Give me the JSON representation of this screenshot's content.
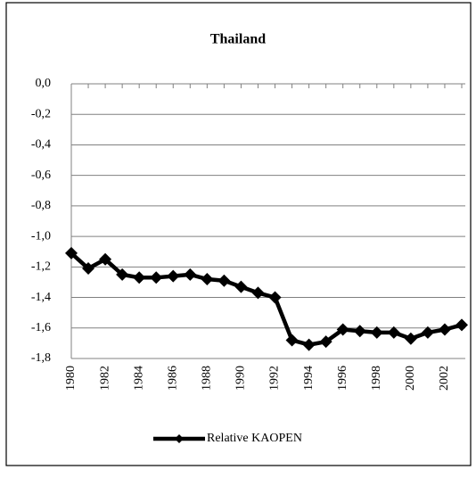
{
  "chart_data": {
    "type": "line",
    "title": "Thailand",
    "categories": [
      "1980",
      null,
      "1982",
      null,
      "1984",
      null,
      "1986",
      null,
      "1988",
      null,
      "1990",
      null,
      "1992",
      null,
      "1994",
      null,
      "1996",
      null,
      "1998",
      null,
      "2000",
      null,
      "2002",
      null
    ],
    "series": [
      {
        "name": "Relative KAOPEN",
        "color": "#000000",
        "values": [
          -1.11,
          -1.21,
          -1.15,
          -1.25,
          -1.27,
          -1.27,
          -1.26,
          -1.25,
          -1.28,
          -1.29,
          -1.33,
          -1.37,
          -1.4,
          -1.68,
          -1.71,
          -1.69,
          -1.61,
          -1.62,
          -1.63,
          -1.63,
          -1.67,
          -1.63,
          -1.61,
          -1.58
        ]
      }
    ],
    "ylim": [
      -1.8,
      0
    ],
    "yticks": [
      {
        "value": 0,
        "label": "0,0"
      },
      {
        "value": -0.2,
        "label": "-0,2"
      },
      {
        "value": -0.4,
        "label": "-0,4"
      },
      {
        "value": -0.6,
        "label": "-0,6"
      },
      {
        "value": -0.8,
        "label": "-0,8"
      },
      {
        "value": -1.0,
        "label": "-1,0"
      },
      {
        "value": -1.2,
        "label": "-1,2"
      },
      {
        "value": -1.4,
        "label": "-1,4"
      },
      {
        "value": -1.6,
        "label": "-1,6"
      },
      {
        "value": -1.8,
        "label": "-1,8"
      }
    ],
    "grid": true
  }
}
